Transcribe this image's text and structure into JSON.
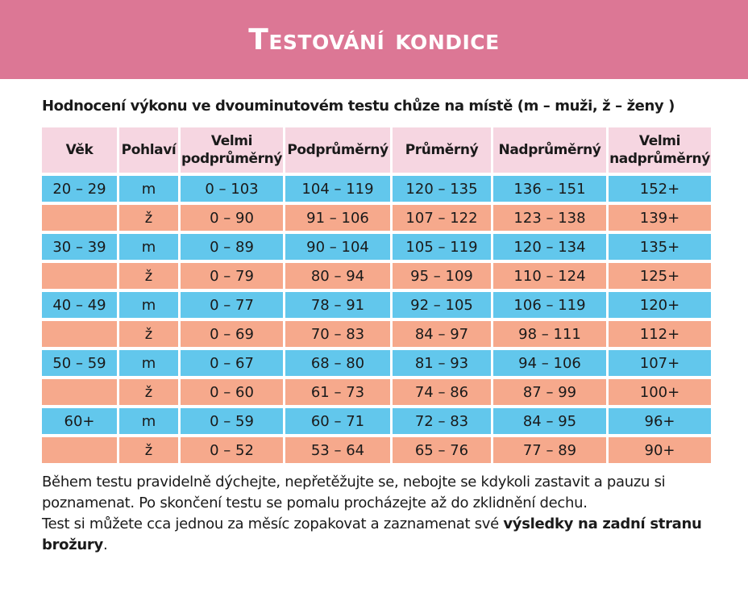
{
  "header": {
    "title": "Testování kondice"
  },
  "table_title": "Hodnocení výkonu ve dvouminutovém testu chůze na místě  (m – muži, ž – ženy )",
  "columns": [
    "Věk",
    "Pohlaví",
    "Velmi podprůměrný",
    "Podprůměrný",
    "Průměrný",
    "Nadprůměrný",
    "Velmi nadprůměrný"
  ],
  "rows": [
    [
      "20 – 29",
      "m",
      "0 – 103",
      "104 – 119",
      "120 – 135",
      "136 – 151",
      "152+"
    ],
    [
      "",
      "ž",
      "0 – 90",
      "91 – 106",
      "107 – 122",
      "123 – 138",
      "139+"
    ],
    [
      "30 – 39",
      "m",
      "0 – 89",
      "90 – 104",
      "105 – 119",
      "120 – 134",
      "135+"
    ],
    [
      "",
      "ž",
      "0 – 79",
      "80 – 94",
      "95 – 109",
      "110 – 124",
      "125+"
    ],
    [
      "40 – 49",
      "m",
      "0 – 77",
      "78 – 91",
      "92 – 105",
      "106 – 119",
      "120+"
    ],
    [
      "",
      "ž",
      "0 – 69",
      "70 – 83",
      "84 – 97",
      "98 – 111",
      "112+"
    ],
    [
      "50 – 59",
      "m",
      "0 – 67",
      "68 – 80",
      "81 – 93",
      "94 – 106",
      "107+"
    ],
    [
      "",
      "ž",
      "0 – 60",
      "61 – 73",
      "74 – 86",
      "87 – 99",
      "100+"
    ],
    [
      "60+",
      "m",
      "0 – 59",
      "60 – 71",
      "72 – 83",
      "84 – 95",
      "96+"
    ],
    [
      "",
      "ž",
      "0 – 52",
      "53 – 64",
      "65 – 76",
      "77 – 89",
      "90+"
    ]
  ],
  "note": {
    "line1": "Během testu pravidelně dýchejte, nepřetěžujte se, nebojte se kdykoli zastavit a pauzu si poznamenat. Po skončení testu se pomalu procházejte až do zklidnění dechu.",
    "line2_prefix": "Test si můžete cca jednou za měsíc zopakovat a zaznamenat své ",
    "line2_bold": "výsledky na zadní stranu brožury",
    "line2_suffix": "."
  },
  "colors": {
    "banner": "#dc7795",
    "header_cells": "#f6d6e1",
    "male_rows": "#62c7ec",
    "female_rows": "#f6a98c"
  }
}
